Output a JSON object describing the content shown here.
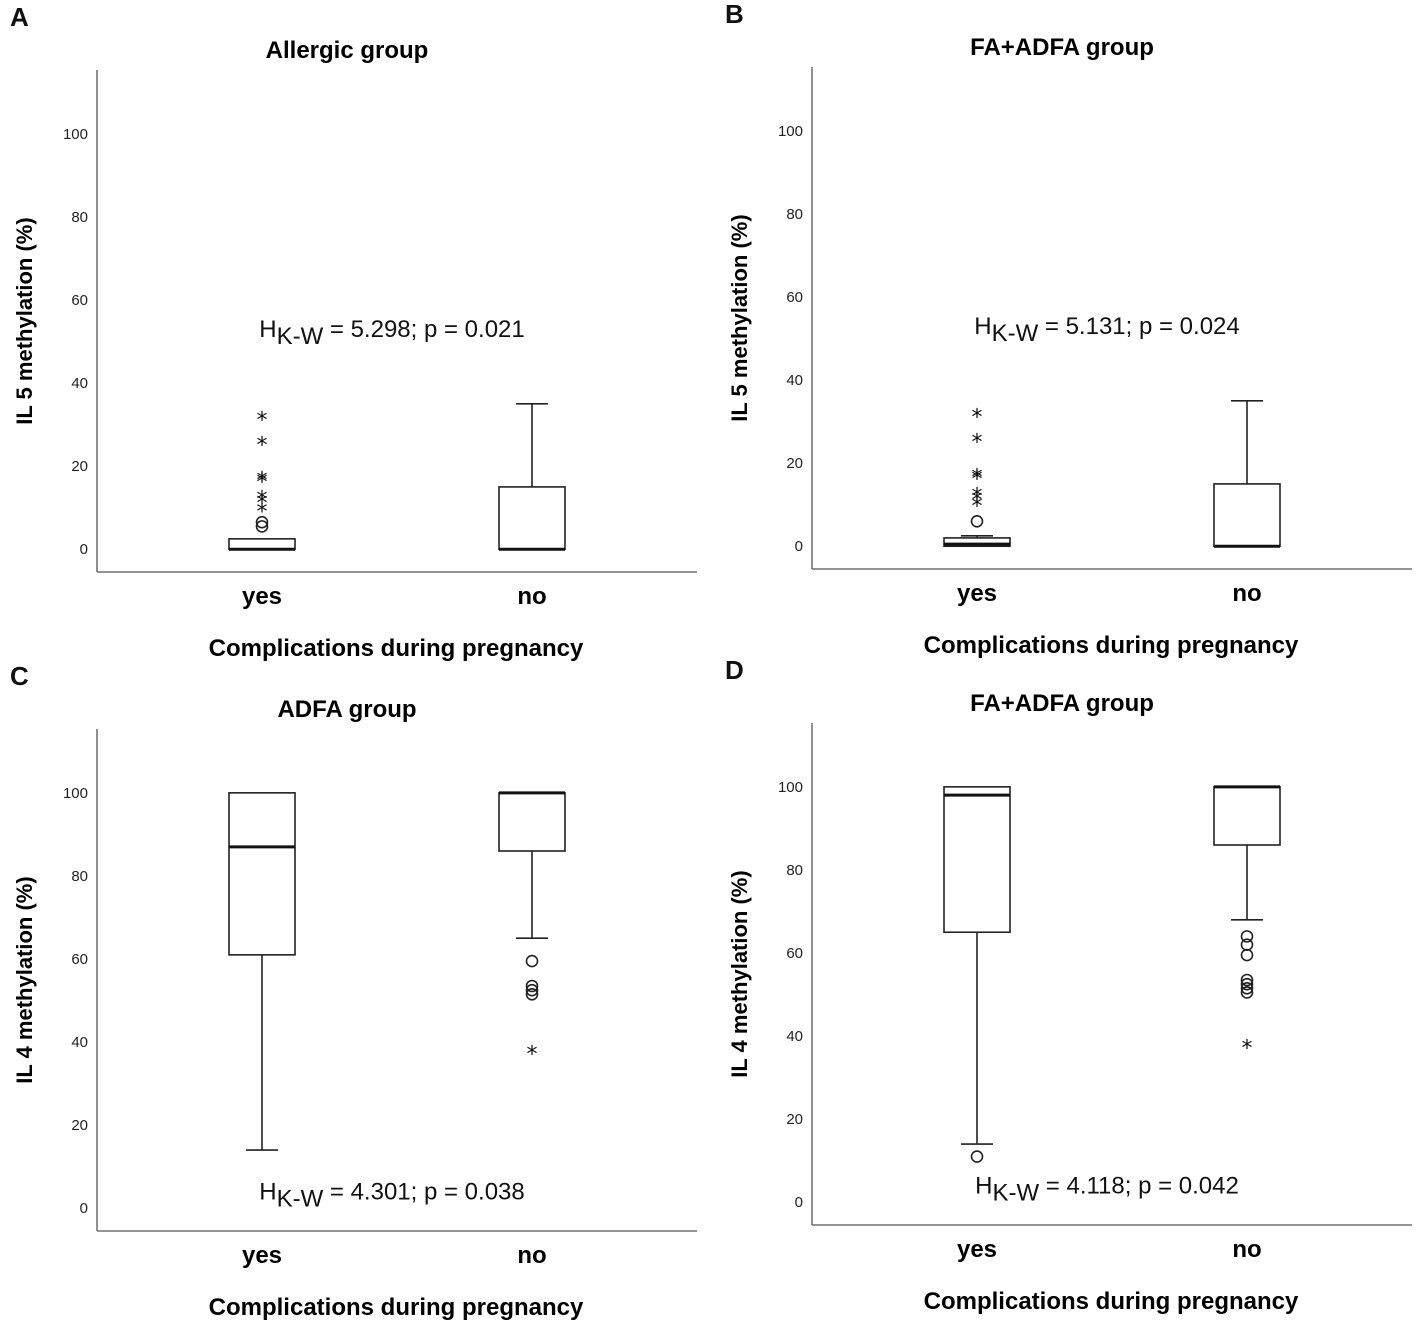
{
  "chart_data": [
    {
      "type": "box",
      "panel_label": "A",
      "title": "Allergic group",
      "ylabel": "IL 5 methylation (%)",
      "xlabel": "Complications during pregnancy",
      "ylim": [
        -5,
        112
      ],
      "yticks": [
        "0",
        "20",
        "40",
        "60",
        "80",
        "100"
      ],
      "stat": {
        "prefix": "H",
        "sub": "K-W",
        "rest": " = 5.298; p = 0.021",
        "y": 53
      },
      "groups": [
        {
          "name": "yes",
          "min": 0,
          "q1": 0,
          "median": 0,
          "q3": 2.5,
          "max": 2.5,
          "outliers": [
            5.5,
            6.5
          ],
          "extremes": [
            31.5,
            25.5,
            17,
            16.5,
            12.5,
            11.5,
            9.5
          ]
        },
        {
          "name": "no",
          "min": 0,
          "q1": 0,
          "median": 0,
          "q3": 15,
          "max": 35,
          "outliers": [],
          "extremes": []
        }
      ]
    },
    {
      "type": "box",
      "panel_label": "B",
      "title": "FA+ADFA group",
      "ylabel": "IL 5 methylation (%)",
      "xlabel": "Complications during pregnancy",
      "ylim": [
        -5,
        112
      ],
      "yticks": [
        "0",
        "20",
        "40",
        "60",
        "80",
        "100"
      ],
      "stat": {
        "prefix": "H",
        "sub": "K-W",
        "rest": " = 5.131; p = 0.024",
        "y": 53
      },
      "groups": [
        {
          "name": "yes",
          "min": 0,
          "q1": 0,
          "median": 0.5,
          "q3": 2,
          "max": 2.5,
          "outliers": [
            6
          ],
          "extremes": [
            31.5,
            25.5,
            17,
            16.5,
            12.5,
            11.5,
            10
          ]
        },
        {
          "name": "no",
          "min": 0,
          "q1": 0,
          "median": 0,
          "q3": 15,
          "max": 35,
          "outliers": [],
          "extremes": []
        }
      ]
    },
    {
      "type": "box",
      "panel_label": "C",
      "title": "ADFA group",
      "ylabel": "IL 4 methylation (%)",
      "xlabel": "Complications during pregnancy",
      "ylim": [
        -5,
        112
      ],
      "yticks": [
        "0",
        "20",
        "40",
        "60",
        "80",
        "100"
      ],
      "stat": {
        "prefix": "H",
        "sub": "K-W",
        "rest": " = 4.301; p = 0.038",
        "y": 4
      },
      "groups": [
        {
          "name": "yes",
          "min": 14,
          "q1": 61,
          "median": 87,
          "q3": 100,
          "max": 100,
          "outliers": [],
          "extremes": []
        },
        {
          "name": "no",
          "min": 65,
          "q1": 86,
          "median": 100,
          "q3": 100,
          "max": 100,
          "outliers": [
            59.5,
            53.5,
            52.5,
            51.5
          ],
          "extremes": [
            37.5
          ]
        }
      ]
    },
    {
      "type": "box",
      "panel_label": "D",
      "title": "FA+ADFA group",
      "ylabel": "IL 4 methylation (%)",
      "xlabel": "Complications during pregnancy",
      "ylim": [
        -5,
        112
      ],
      "yticks": [
        "0",
        "20",
        "40",
        "60",
        "80",
        "100"
      ],
      "stat": {
        "prefix": "H",
        "sub": "K-W",
        "rest": " = 4.118; p = 0.042",
        "y": 4
      },
      "groups": [
        {
          "name": "yes",
          "min": 14,
          "q1": 65,
          "median": 98,
          "q3": 100,
          "max": 100,
          "outliers": [
            11
          ],
          "extremes": []
        },
        {
          "name": "no",
          "min": 68,
          "q1": 86,
          "median": 100,
          "q3": 100,
          "max": 100,
          "outliers": [
            64,
            62,
            59.5,
            53.5,
            52.5,
            51.5,
            50.5
          ],
          "extremes": [
            37.5
          ]
        }
      ]
    }
  ]
}
